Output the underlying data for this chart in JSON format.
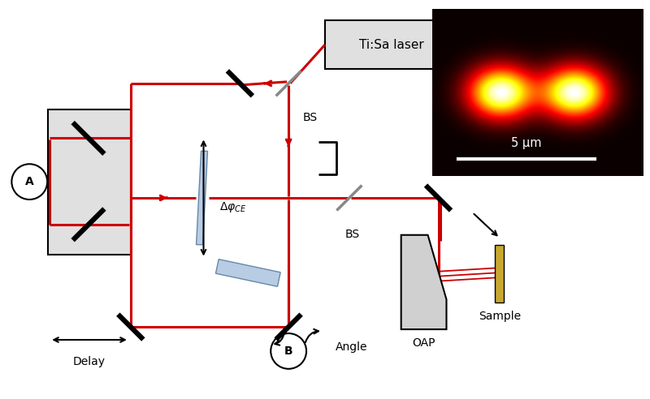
{
  "bg_color": "#ffffff",
  "red": "#cc0000",
  "laser_label": "Ti:Sa laser",
  "bs1_label": "BS",
  "bs2_label": "BS",
  "delay_label": "Delay",
  "dphi_label": "Δφ",
  "dphi_sub": "CE",
  "angle_label": "Angle",
  "oap_label": "OAP",
  "sample_label": "Sample",
  "label_A": "A",
  "label_B": "B",
  "inset_scale": "5 μm",
  "beam_lw": 2.2,
  "mirror_lw": 4.5
}
